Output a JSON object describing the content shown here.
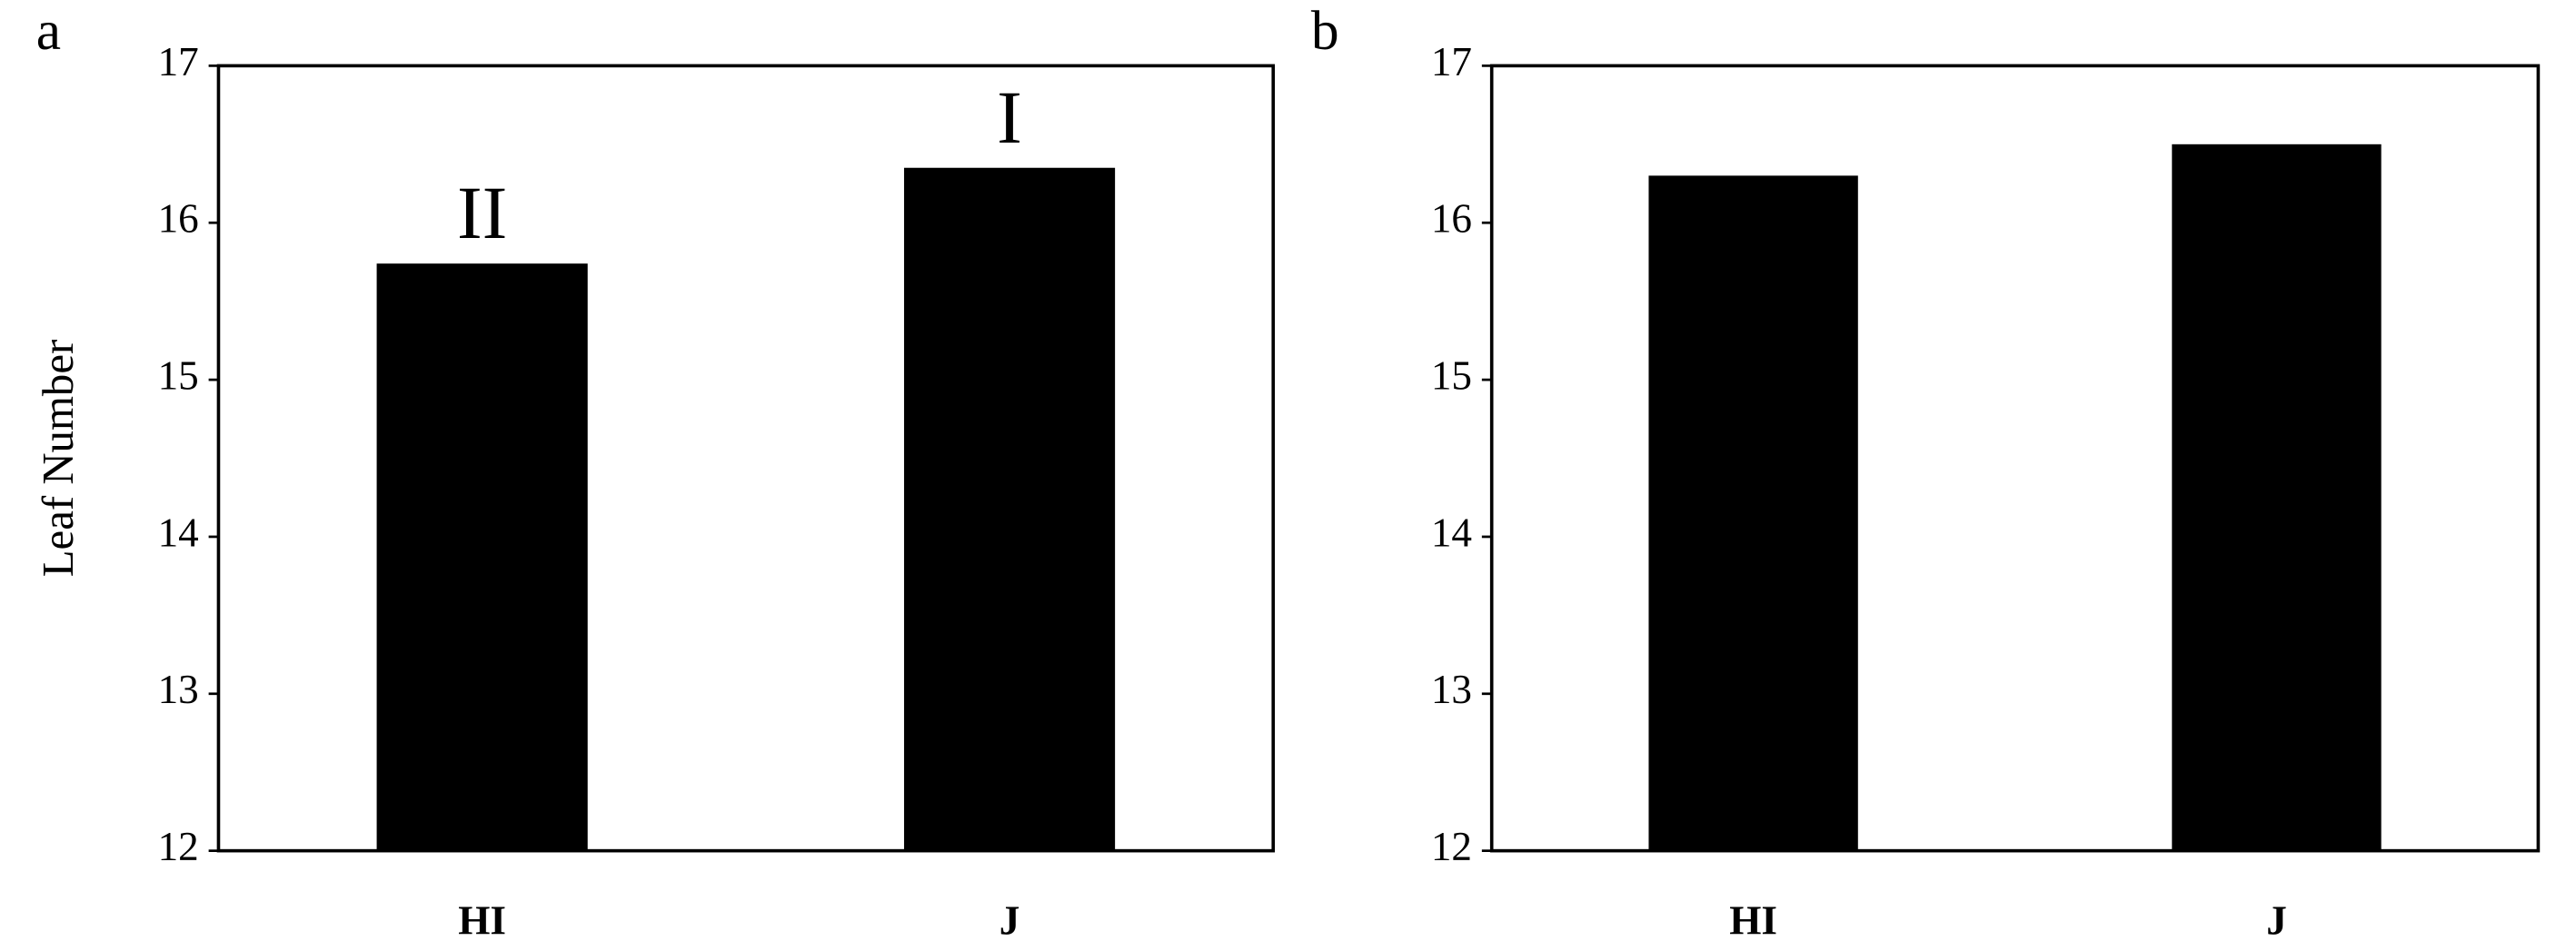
{
  "chart_data": [
    {
      "type": "bar",
      "panel_label": "a",
      "ylabel": "Leaf Number",
      "categories": [
        "HI",
        "J"
      ],
      "values": [
        15.74,
        16.35
      ],
      "bar_labels": [
        "II",
        "I"
      ],
      "color": "#000000",
      "ylim": [
        12,
        17
      ],
      "yticks": [
        12,
        13,
        14,
        15,
        16,
        17
      ]
    },
    {
      "type": "bar",
      "panel_label": "b",
      "categories": [
        "HI",
        "J"
      ],
      "values": [
        16.3,
        16.5
      ],
      "color": "#000000",
      "ylim": [
        12,
        17
      ],
      "yticks": [
        12,
        13,
        14,
        15,
        16,
        17
      ]
    }
  ]
}
